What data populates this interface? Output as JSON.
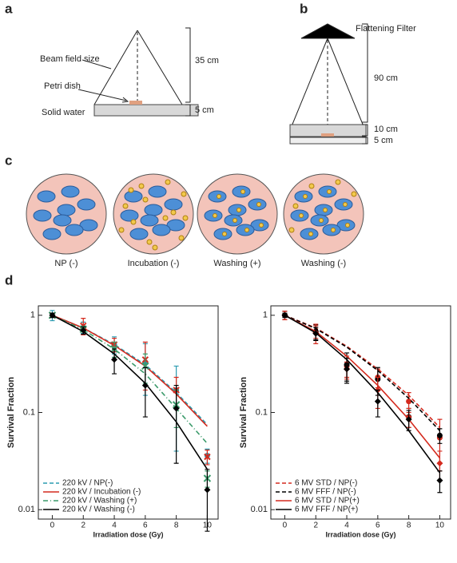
{
  "panels": {
    "a": {
      "label": "a",
      "beam": "Beam field size",
      "dish": "Petri dish",
      "water": "Solid water",
      "dist1": "35 cm",
      "dist2": "5 cm"
    },
    "b": {
      "label": "b",
      "filter": "Flattening Filter",
      "dist1": "90 cm",
      "dist2": "10 cm",
      "dist3": "5 cm"
    },
    "c": {
      "label": "c",
      "cells": [
        "NP (-)",
        "Incubation (-)",
        "Washing (+)",
        "Washing (-)"
      ]
    },
    "d": {
      "label": "d"
    }
  },
  "chart_data": [
    {
      "type": "line",
      "x": [
        0,
        2,
        4,
        6,
        8,
        10
      ],
      "xlabel": "Irradiation dose (Gy)",
      "ylabel": "Survival Fraction",
      "xlim": [
        -0.9,
        10.7
      ],
      "xticks": [
        0,
        2,
        4,
        6,
        8,
        10
      ],
      "ylim": [
        0.008,
        1.25
      ],
      "yticks": [
        1,
        0.1,
        0.01
      ],
      "log_y": true,
      "legend": "lower left",
      "series": [
        {
          "name": "220 kV / NP(-)",
          "color": "#2a9bb0",
          "marker": "circle",
          "dash": "dashed",
          "values": [
            1,
            0.75,
            0.5,
            0.33,
            0.17,
            0.036
          ],
          "errors": [
            0.12,
            0.1,
            0.1,
            0.18,
            0.13,
            0.006
          ],
          "fit": [
            1,
            0.74,
            0.5,
            0.31,
            0.16,
            0.075
          ]
        },
        {
          "name": "220 kV / Incubation (-)",
          "color": "#d42a1e",
          "marker": "x",
          "dash": "solid",
          "values": [
            1,
            0.78,
            0.5,
            0.35,
            0.17,
            0.035
          ],
          "errors": [
            0.05,
            0.15,
            0.08,
            0.18,
            0.06,
            0.006
          ],
          "fit": [
            1,
            0.74,
            0.49,
            0.3,
            0.155,
            0.072
          ]
        },
        {
          "name": "220 kV / Washing (+)",
          "color": "#3a9a6a",
          "marker": "cross",
          "dash": "dashdot",
          "values": [
            1,
            0.72,
            0.45,
            0.3,
            0.12,
            0.021
          ],
          "errors": [
            0.05,
            0.05,
            0.08,
            0.1,
            0.05,
            0.004
          ],
          "fit": [
            1,
            0.71,
            0.45,
            0.25,
            0.11,
            0.048
          ]
        },
        {
          "name": "220 kV / Washing (-)",
          "color": "#000000",
          "marker": "diamond",
          "dash": "solid",
          "values": [
            1,
            0.7,
            0.35,
            0.19,
            0.11,
            0.016
          ],
          "errors": [
            0.05,
            0.06,
            0.1,
            0.1,
            0.08,
            0.01
          ],
          "fit": [
            1,
            0.68,
            0.4,
            0.2,
            0.08,
            0.026
          ]
        }
      ]
    },
    {
      "type": "line",
      "x": [
        0,
        2,
        4,
        6,
        8,
        10
      ],
      "xlabel": "Irradiation dose (Gy)",
      "ylabel": "Survival Fraction",
      "xlim": [
        -0.9,
        10.7
      ],
      "xticks": [
        0,
        2,
        4,
        6,
        8,
        10
      ],
      "ylim": [
        0.008,
        1.25
      ],
      "yticks": [
        1,
        0.1,
        0.01
      ],
      "log_y": true,
      "legend": "lower left",
      "series": [
        {
          "name": "6 MV STD / NP(-)",
          "color": "#d42a1e",
          "marker": "circle",
          "dash": "dashed",
          "values": [
            1,
            0.68,
            0.3,
            0.23,
            0.13,
            0.055
          ],
          "errors": [
            0.1,
            0.1,
            0.08,
            0.05,
            0.03,
            0.03
          ],
          "fit": [
            1,
            0.74,
            0.48,
            0.28,
            0.15,
            0.07
          ]
        },
        {
          "name": "6 MV FFF / NP(-)",
          "color": "#000000",
          "marker": "circle",
          "dash": "dashed",
          "values": [
            1,
            0.68,
            0.31,
            0.22,
            0.09,
            0.058
          ],
          "errors": [
            0.1,
            0.12,
            0.1,
            0.07,
            0.02,
            0.01
          ],
          "fit": [
            1,
            0.73,
            0.47,
            0.27,
            0.14,
            0.065
          ]
        },
        {
          "name": "6 MV STD / NP(+)",
          "color": "#d42a1e",
          "marker": "diamond",
          "dash": "solid",
          "values": [
            1,
            0.66,
            0.28,
            0.17,
            0.09,
            0.03
          ],
          "errors": [
            0.1,
            0.15,
            0.05,
            0.06,
            0.02,
            0.01
          ],
          "fit": [
            1,
            0.68,
            0.38,
            0.19,
            0.085,
            0.034
          ]
        },
        {
          "name": "6 MV FFF / NP(+)",
          "color": "#000000",
          "marker": "diamond",
          "dash": "solid",
          "values": [
            1,
            0.65,
            0.28,
            0.13,
            0.085,
            0.02
          ],
          "errors": [
            0.05,
            0.1,
            0.08,
            0.04,
            0.02,
            0.005
          ],
          "fit": [
            1,
            0.66,
            0.35,
            0.16,
            0.065,
            0.024
          ]
        }
      ]
    }
  ]
}
